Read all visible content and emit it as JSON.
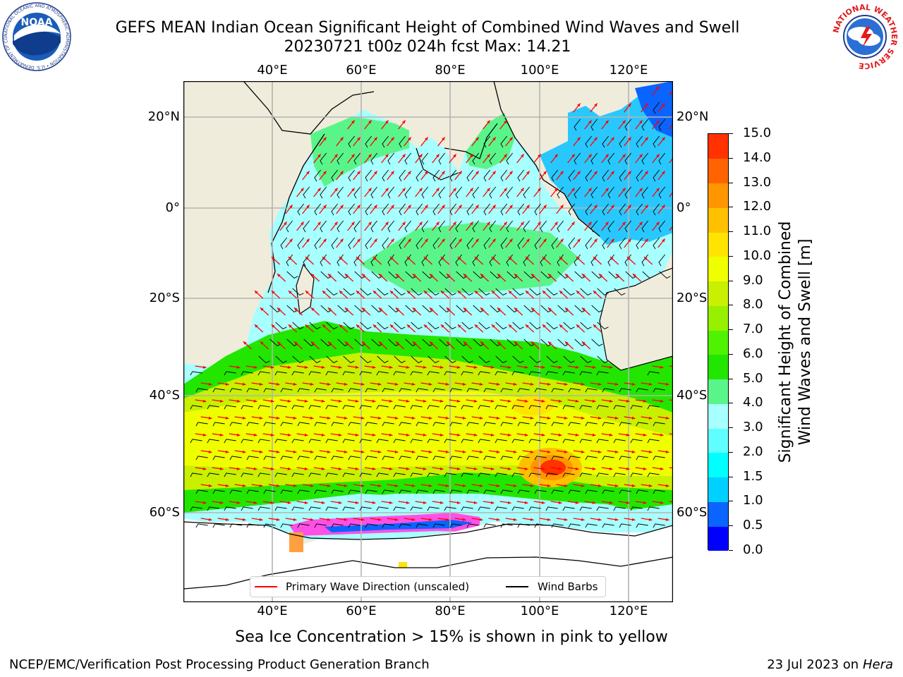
{
  "header": {
    "title_line1": "GEFS MEAN Indian Ocean Significant Height of Combined Wind Waves and Swell",
    "title_line2": "20230721 t00z 024h fcst   Max: 14.21"
  },
  "logos": {
    "noaa": {
      "icon": "noaa-logo-icon",
      "text": "NOAA",
      "ring_text": "NATIONAL OCEANIC AND ATMOSPHERIC ADMINISTRATION • U.S. DEPARTMENT OF COMMERCE"
    },
    "nws": {
      "icon": "nws-logo-icon",
      "ring_text": "NATIONAL WEATHER SERVICE"
    }
  },
  "map": {
    "lon_ticks": [
      "40°E",
      "60°E",
      "80°E",
      "100°E",
      "120°E"
    ],
    "lat_ticks": [
      "20°N",
      "0°",
      "20°S",
      "40°S",
      "60°S"
    ],
    "land_color": "#efecdc",
    "ocean_regions_note": "filled contours of wave height with wind barbs and wave direction arrows",
    "colors": {
      "wave_arrow": "#ff0000",
      "wind_barb": "#000000",
      "grid": "#b4b4b4"
    }
  },
  "colorbar": {
    "title": "Significant Height of Combined Wind Waves and Swell [m]",
    "title_line1": "Significant Height of Combined",
    "title_line2": "Wind Waves and Swell [m]",
    "ticks": [
      "0.0",
      "0.5",
      "1.0",
      "1.5",
      "2.0",
      "3.0",
      "4.0",
      "5.0",
      "6.0",
      "7.0",
      "8.0",
      "9.0",
      "10.0",
      "11.0",
      "12.0",
      "13.0",
      "14.0",
      "15.0"
    ],
    "colors": [
      "#0000ff",
      "#0a64ff",
      "#00d0ff",
      "#00ffff",
      "#60ffff",
      "#a8ffff",
      "#5af58a",
      "#22e600",
      "#4ff200",
      "#96f000",
      "#c8f000",
      "#f0ff00",
      "#ffe400",
      "#ffc000",
      "#ff9600",
      "#ff6400",
      "#ff3200"
    ]
  },
  "legend": {
    "wave_direction": "Primary Wave Direction (unscaled)",
    "wind_barbs": "Wind Barbs"
  },
  "caption": "Sea Ice Concentration > 15% is shown in pink to yellow",
  "footer": {
    "left": "NCEP/EMC/Verification Post Processing Product Generation Branch",
    "right_prefix": "23 Jul 2023 on ",
    "right_host": "Hera"
  }
}
